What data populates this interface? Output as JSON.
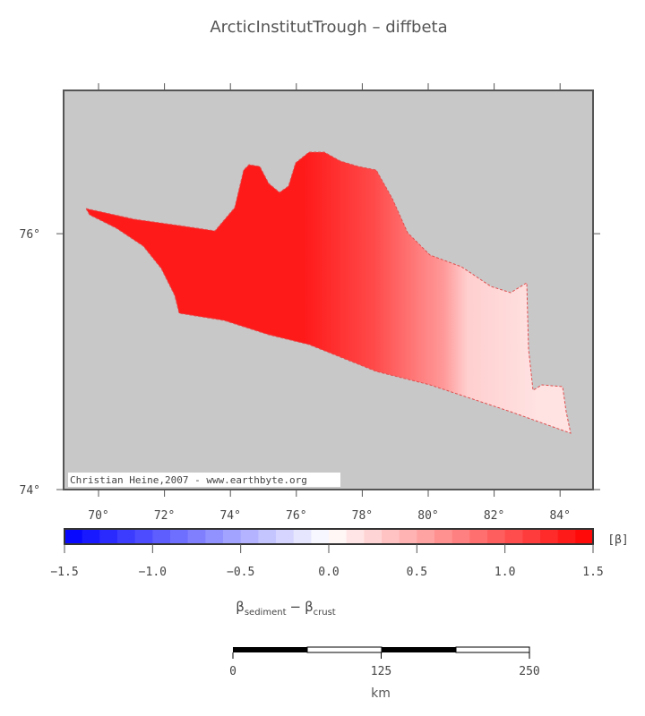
{
  "title": "ArcticInstitutTrough – diffbeta",
  "map": {
    "lon_range": [
      68.94,
      85.0
    ],
    "lat_range": [
      74,
      77.12
    ],
    "lon_ticks": [
      {
        "value": 70,
        "label": "70°"
      },
      {
        "value": 72,
        "label": "72°"
      },
      {
        "value": 74,
        "label": "74°"
      },
      {
        "value": 76,
        "label": "76°"
      },
      {
        "value": 78,
        "label": "78°"
      },
      {
        "value": 80,
        "label": "80°"
      },
      {
        "value": 82,
        "label": "82°"
      },
      {
        "value": 84,
        "label": "84°"
      }
    ],
    "lat_ticks": [
      {
        "value": 74,
        "label": "74°"
      },
      {
        "value": 76,
        "label": "76°"
      }
    ],
    "credit": "Christian Heine,2007 - www.earthbyte.org"
  },
  "colorbar": {
    "range": [
      -1.5,
      1.5
    ],
    "ticks": [
      {
        "value": -1.5,
        "label": "−1.5"
      },
      {
        "value": -1.0,
        "label": "−1.0"
      },
      {
        "value": -0.5,
        "label": "−0.5"
      },
      {
        "value": 0,
        "label": "0.0"
      },
      {
        "value": 0.5,
        "label": "0.5"
      },
      {
        "value": 1.0,
        "label": "1.0"
      },
      {
        "value": 1.5,
        "label": "1.5"
      }
    ],
    "unit": "[β]",
    "label": {
      "symbol": "β",
      "sub1": "sediment",
      "op": "−",
      "sub2": "crust"
    }
  },
  "scalebar": {
    "ticks": [
      0,
      125,
      250
    ],
    "unit": "km"
  }
}
